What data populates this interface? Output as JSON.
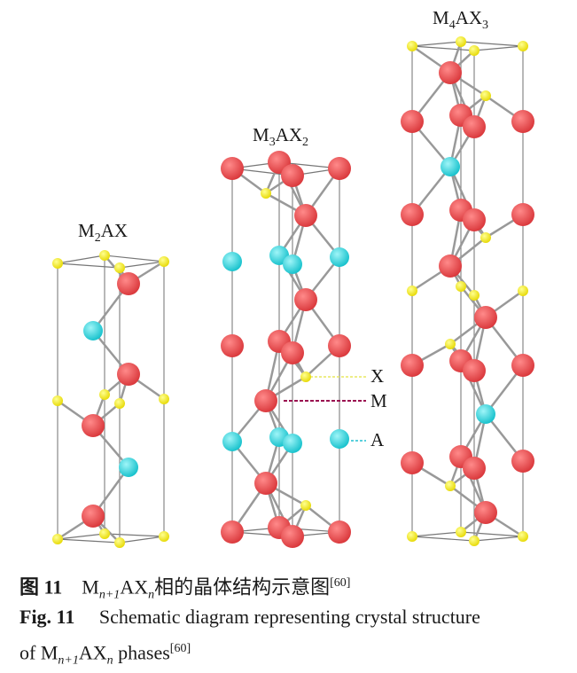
{
  "figure": {
    "structures": [
      {
        "label_main": "M",
        "label_sub1": "2",
        "label_mid": "AX",
        "label_sub2": ""
      },
      {
        "label_main": "M",
        "label_sub1": "3",
        "label_mid": "AX",
        "label_sub2": "2"
      },
      {
        "label_main": "M",
        "label_sub1": "4",
        "label_mid": "AX",
        "label_sub2": "3"
      }
    ],
    "legend": [
      {
        "label": "X",
        "color": "#f2e600"
      },
      {
        "label": "M",
        "color": "#e8444a"
      },
      {
        "label": "A",
        "color": "#22d3dc"
      }
    ],
    "line_colors": {
      "X": "#e8e860",
      "M": "#9a1050",
      "A": "#22c0d0"
    }
  },
  "caption": {
    "cn_prefix": "图 11",
    "cn_M": "M",
    "cn_sub1": "n+1",
    "cn_AX": "AX",
    "cn_sub2": "n",
    "cn_text": "相的晶体结构示意图",
    "cn_ref": "[60]",
    "en_prefix": "Fig. 11",
    "en_line1": "Schematic diagram representing crystal structure",
    "en_of": "of M",
    "en_sub1": "n+1",
    "en_AX": "AX",
    "en_sub2": "n",
    "en_text": " phases",
    "en_ref": "[60]"
  }
}
